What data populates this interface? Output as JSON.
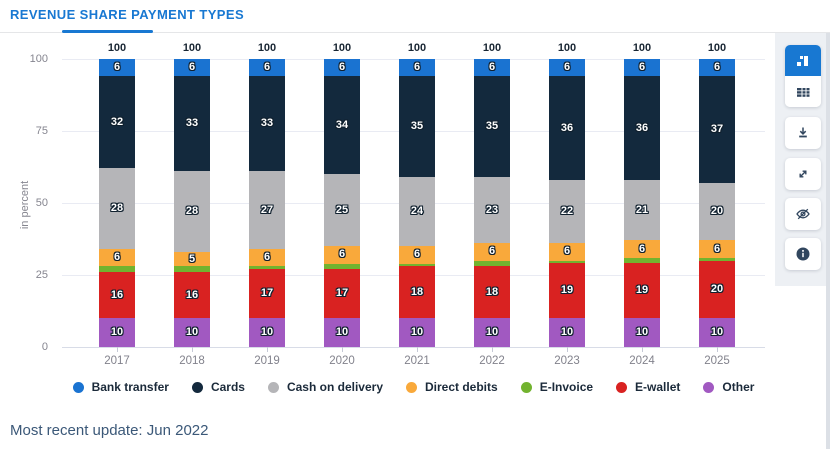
{
  "header": {
    "title": "REVENUE SHARE PAYMENT TYPES"
  },
  "chart_data": {
    "type": "bar",
    "stacked": true,
    "title": "Revenue share payment types",
    "ylabel": "in percent",
    "xlabel": "",
    "ylim": [
      0,
      100
    ],
    "yticks": [
      0,
      25,
      50,
      75,
      100
    ],
    "grid": true,
    "legend_position": "bottom",
    "label_min": 4,
    "categories": [
      "2017",
      "2018",
      "2019",
      "2020",
      "2021",
      "2022",
      "2023",
      "2024",
      "2025"
    ],
    "totals": [
      100,
      100,
      100,
      100,
      100,
      100,
      100,
      100,
      100
    ],
    "series": [
      {
        "name": "Bank transfer",
        "color": "#1a73d1",
        "values": [
          6,
          6,
          6,
          6,
          6,
          6,
          6,
          6,
          6
        ]
      },
      {
        "name": "Cards",
        "color": "#13293d",
        "values": [
          32,
          33,
          33,
          34,
          35,
          35,
          36,
          36,
          37
        ]
      },
      {
        "name": "Cash on delivery",
        "color": "#b5b5b8",
        "values": [
          28,
          28,
          27,
          25,
          24,
          23,
          22,
          21,
          20
        ]
      },
      {
        "name": "Direct debits",
        "color": "#f9a93b",
        "values": [
          6,
          5,
          6,
          6,
          6,
          6,
          6,
          6,
          6
        ]
      },
      {
        "name": "E-Invoice",
        "color": "#72b32f",
        "values": [
          2,
          2,
          1,
          2,
          1,
          2,
          1,
          2,
          1
        ]
      },
      {
        "name": "E-wallet",
        "color": "#d92221",
        "values": [
          16,
          16,
          17,
          17,
          18,
          18,
          19,
          19,
          20
        ]
      },
      {
        "name": "Other",
        "color": "#a159c1",
        "values": [
          10,
          10,
          10,
          10,
          10,
          10,
          10,
          10,
          10
        ]
      }
    ]
  },
  "toolbar": {
    "accent_color": "#1878d2",
    "icon_color": "#31465e",
    "buttons": [
      {
        "id": "chart-view",
        "icon": "bar-chart-icon",
        "active": true
      },
      {
        "id": "table-view",
        "icon": "table-icon",
        "active": false
      },
      {
        "id": "download",
        "icon": "download-icon",
        "active": false
      },
      {
        "id": "fullscreen",
        "icon": "expand-icon",
        "active": false
      },
      {
        "id": "toggle-visibility",
        "icon": "eye-off-icon",
        "active": false
      },
      {
        "id": "info",
        "icon": "info-icon",
        "active": false
      }
    ]
  },
  "footer": {
    "update_text": "Most recent update: Jun 2022"
  }
}
